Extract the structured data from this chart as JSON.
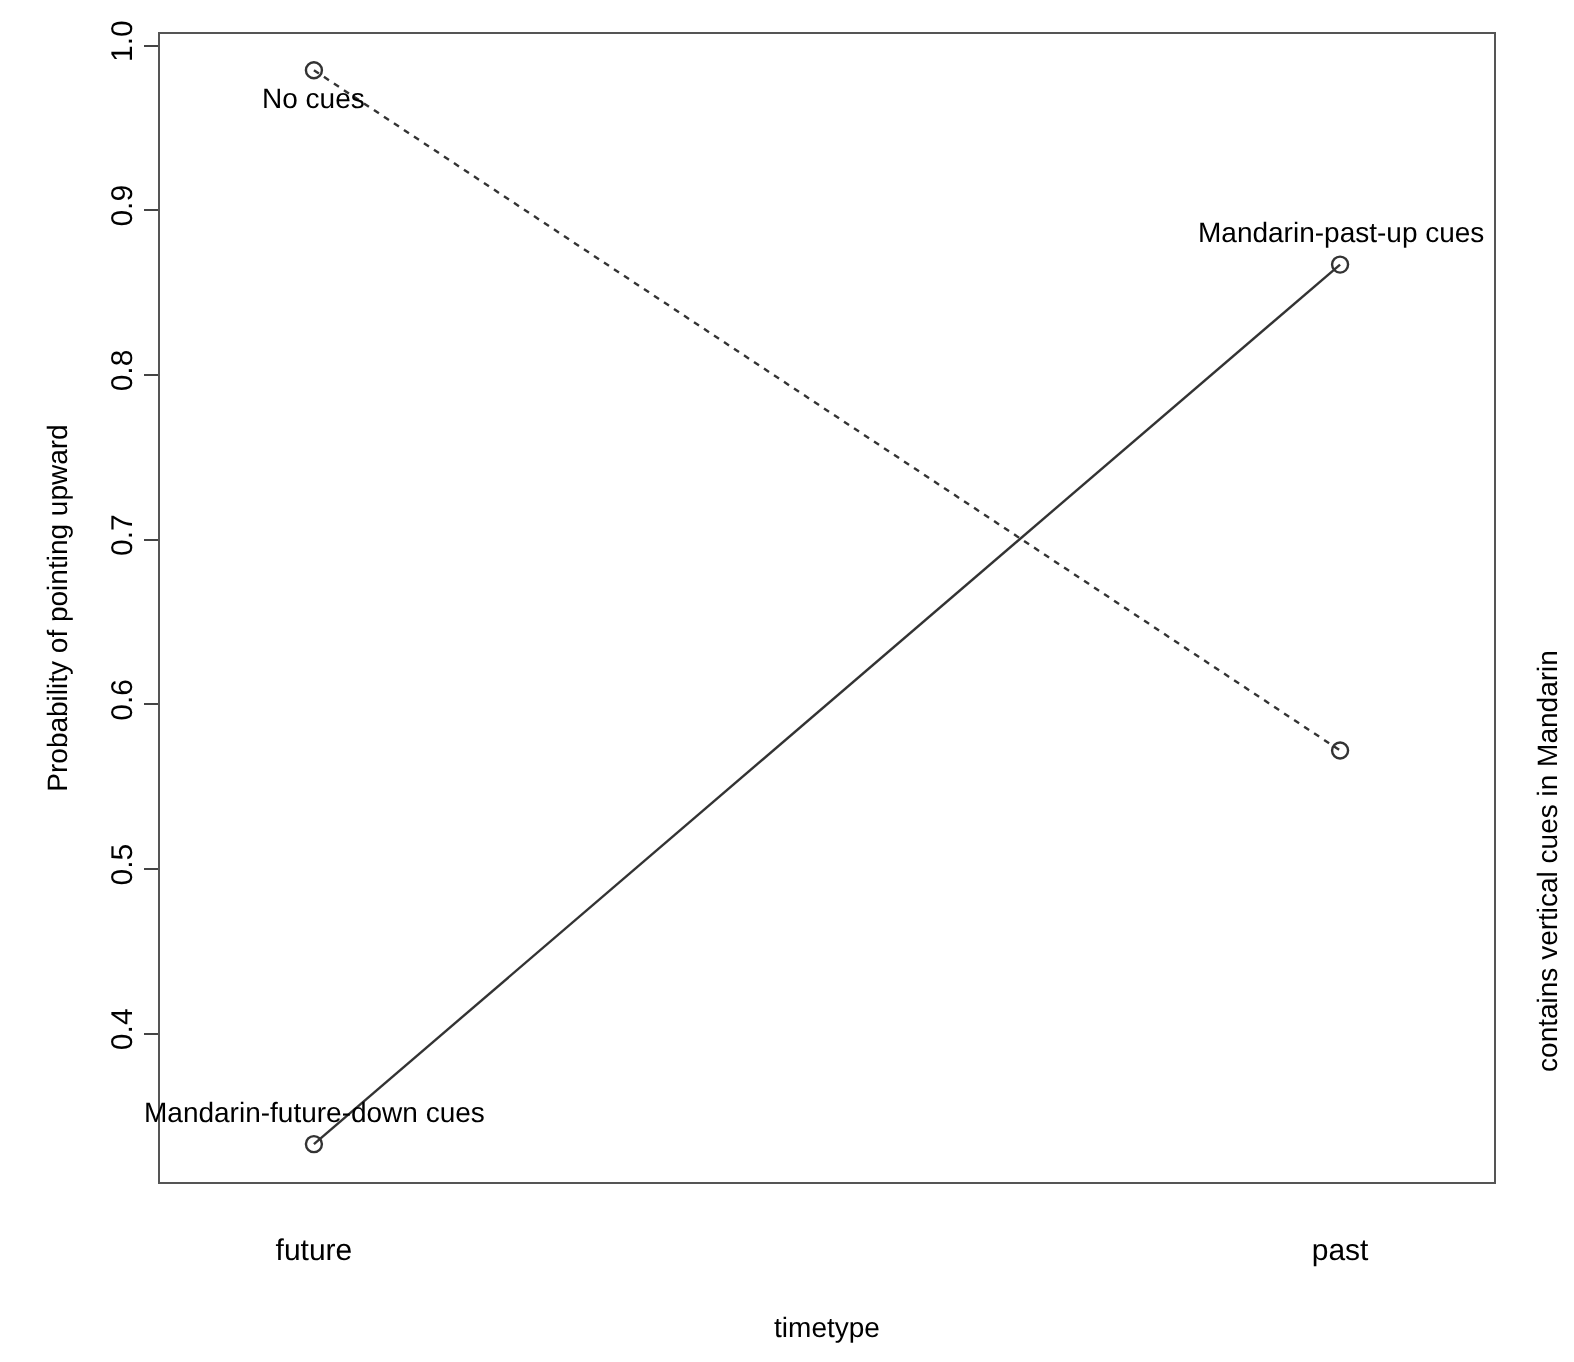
{
  "chart_data": {
    "type": "line",
    "xlabel": "timetype",
    "ylabel": "Probability of pointing upward",
    "y2label": "contains vertical cues in Mandarin",
    "categories": [
      "future",
      "past"
    ],
    "series": [
      {
        "color": "#333333",
        "line_style": "solid",
        "values": [
          0.333,
          0.867
        ]
      },
      {
        "color": "#333333",
        "line_style": "dotted",
        "values": [
          0.985,
          0.572
        ]
      }
    ],
    "marker": "circle",
    "ylim": [
      0.31,
      1.007
    ],
    "yticks": [
      0.4,
      0.5,
      0.6,
      0.7,
      0.8,
      0.9,
      {
        "value": 1,
        "label": "1.0"
      }
    ],
    "annotations": [
      {
        "text": "No cues",
        "x": "future",
        "y": 0.985
      },
      {
        "text": "Mandarin-past-up cues",
        "x": "past",
        "y": 0.867
      },
      {
        "text": "Mandarin-future-down cues",
        "x": "future",
        "y": 0.333
      }
    ]
  }
}
